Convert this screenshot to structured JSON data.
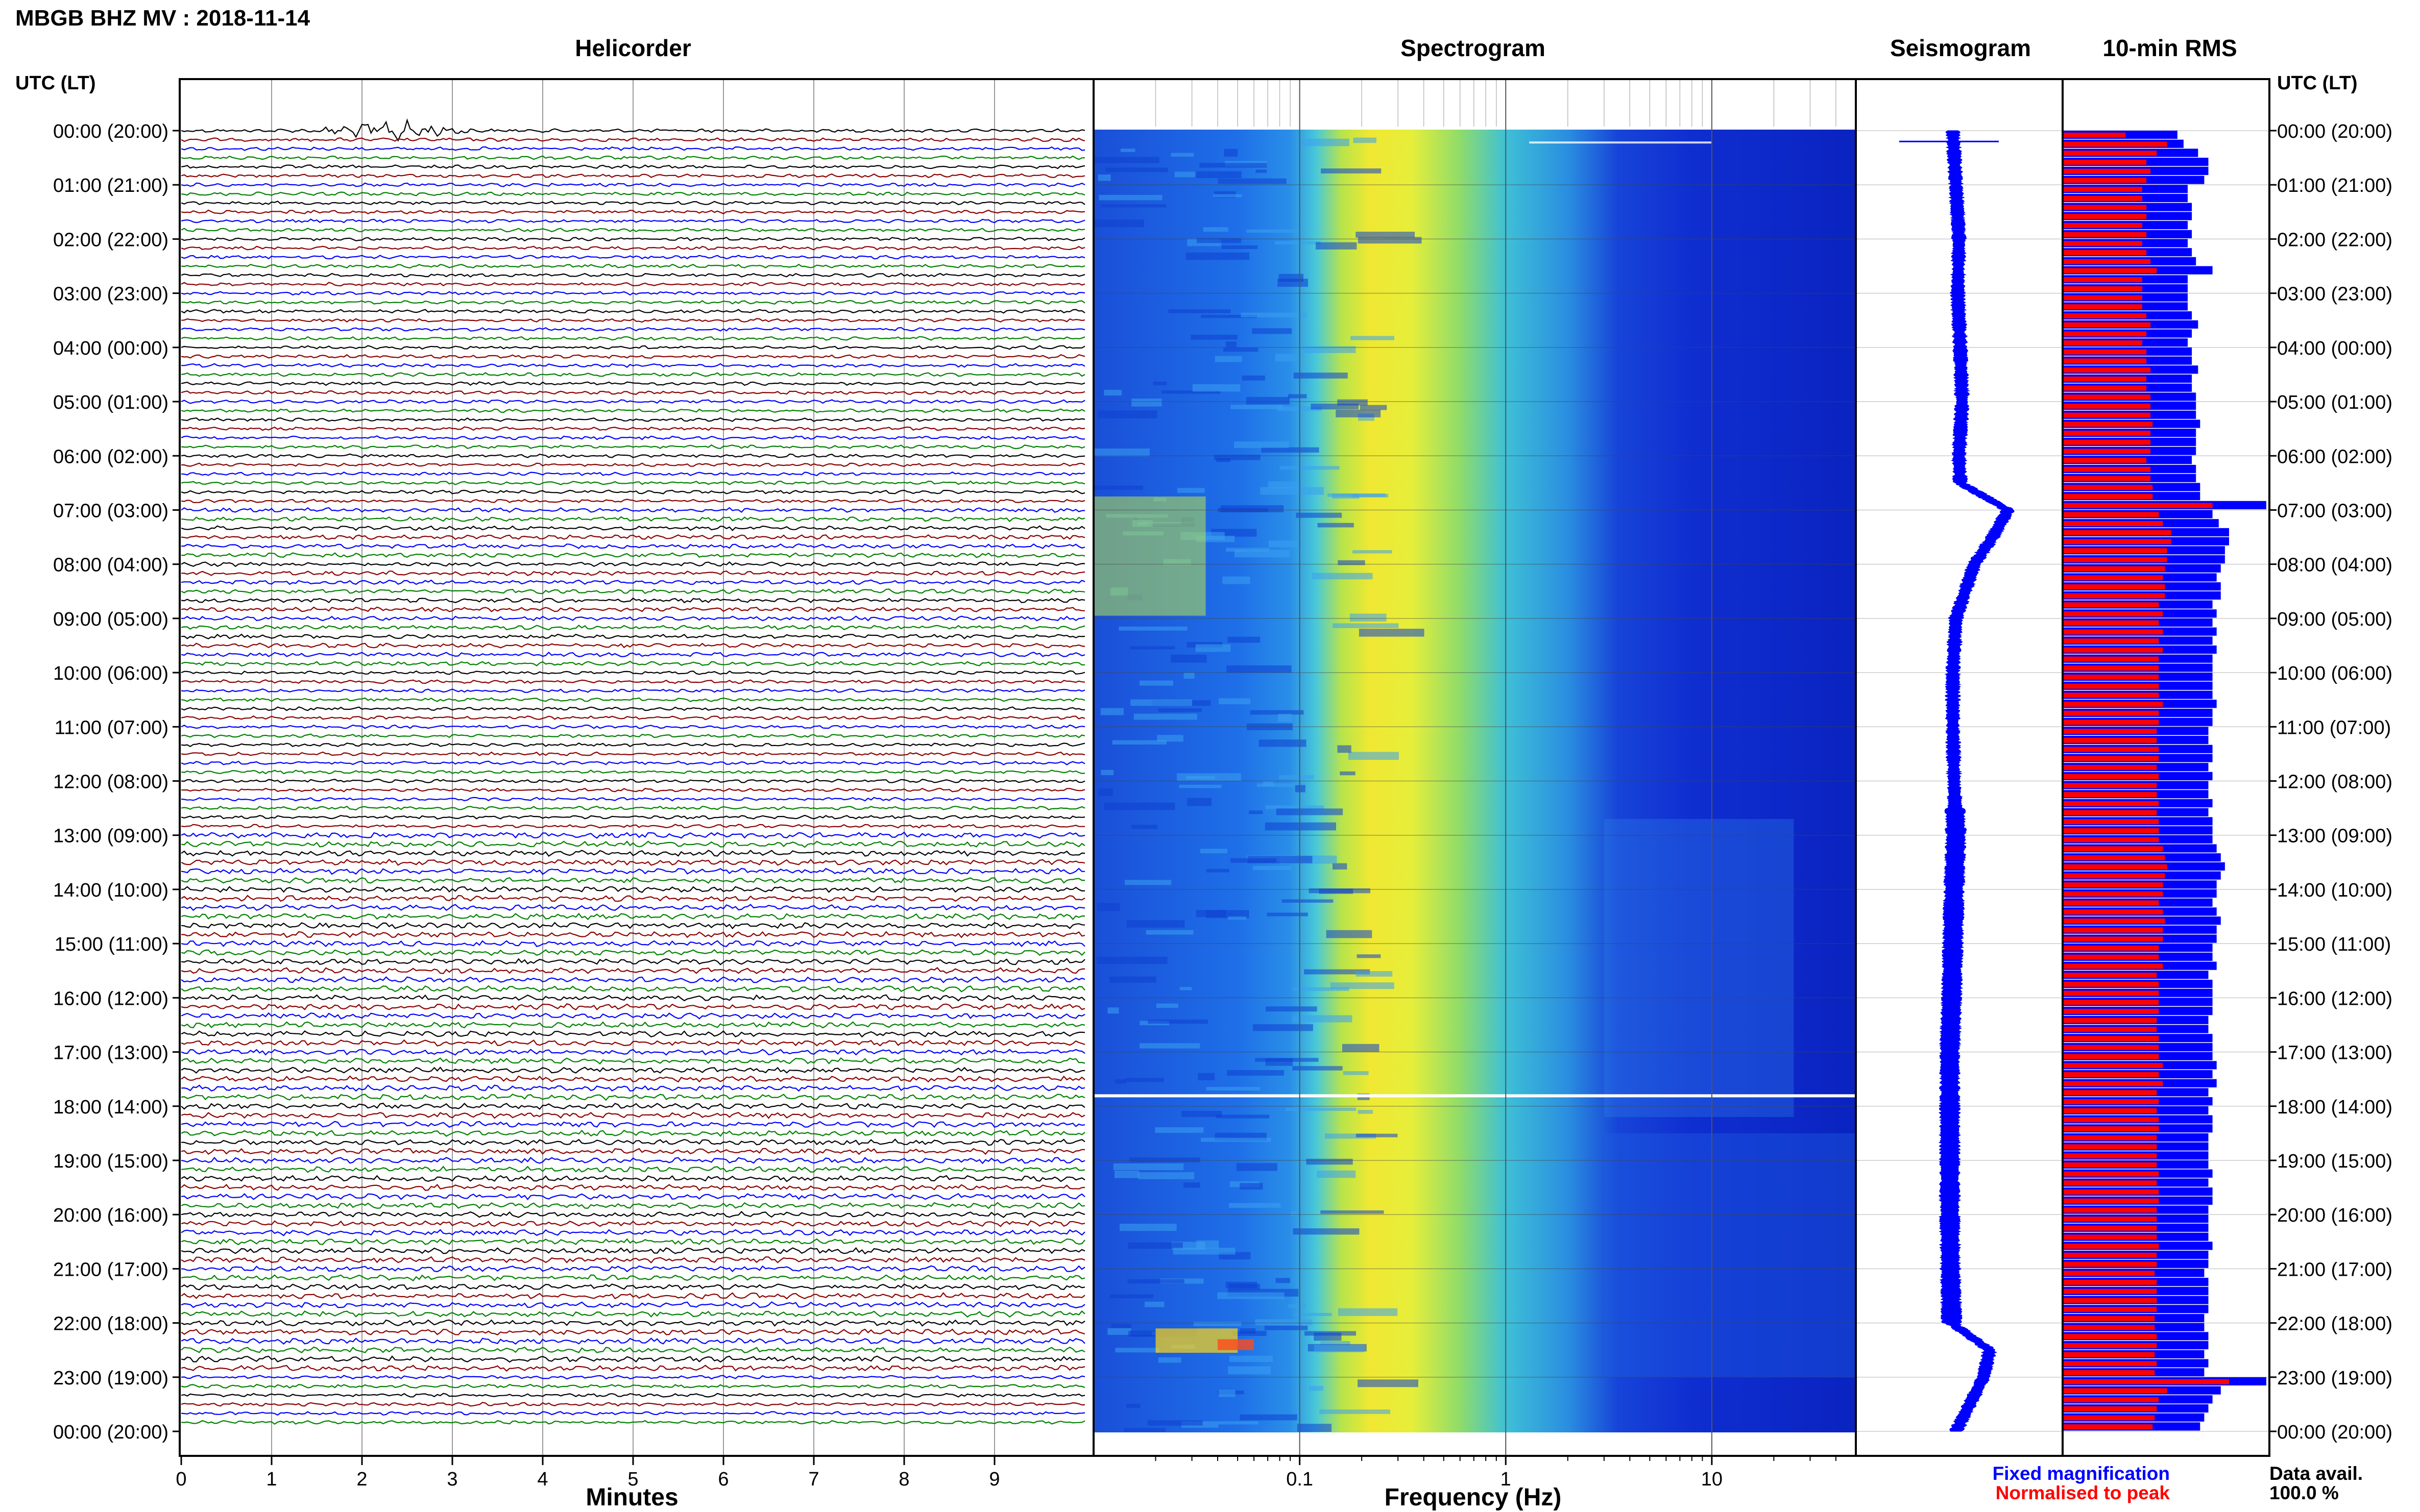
{
  "header": {
    "title": "MBGB BHZ MV : 2018-11-14"
  },
  "axis_labels": {
    "left_corner": "UTC (LT)",
    "right_corner": "UTC (LT)",
    "minutes": "Minutes",
    "frequency": "Frequency (Hz)"
  },
  "panels": {
    "helicorder": "Helicorder",
    "spectrogram": "Spectrogram",
    "seismogram": "Seismogram",
    "rms": "10-min RMS"
  },
  "legend": {
    "fixed": "Fixed magnification",
    "normalised": "Normalised to peak",
    "fixed_color": "#0000ff",
    "normalised_color": "#ff0000"
  },
  "data_availability": {
    "label": "Data avail.",
    "value": "100.0 %"
  },
  "time_labels": [
    "00:00 (20:00)",
    "01:00 (21:00)",
    "02:00 (22:00)",
    "03:00 (23:00)",
    "04:00 (00:00)",
    "05:00 (01:00)",
    "06:00 (02:00)",
    "07:00 (03:00)",
    "08:00 (04:00)",
    "09:00 (05:00)",
    "10:00 (06:00)",
    "11:00 (07:00)",
    "12:00 (08:00)",
    "13:00 (09:00)",
    "14:00 (10:00)",
    "15:00 (11:00)",
    "16:00 (12:00)",
    "17:00 (13:00)",
    "18:00 (14:00)",
    "19:00 (15:00)",
    "20:00 (16:00)",
    "21:00 (17:00)",
    "22:00 (18:00)",
    "23:00 (19:00)",
    "00:00 (20:00)"
  ],
  "chart_data": [
    {
      "type": "line",
      "panel": "Helicorder",
      "xlabel": "Minutes",
      "x_ticks": [
        "0",
        "1",
        "2",
        "3",
        "4",
        "5",
        "6",
        "7",
        "8",
        "9"
      ],
      "xlim": [
        0,
        10
      ],
      "line_colors": [
        "#000000",
        "#8b0000",
        "#0000ff",
        "#008000"
      ],
      "events": [
        {
          "hour": 0,
          "minute_start": 1.5,
          "minute_end": 3.2,
          "peak_minute": 2.35
        }
      ]
    },
    {
      "type": "heatmap",
      "panel": "Spectrogram",
      "xlabel": "Frequency (Hz)",
      "x_scale": "log",
      "x_ticks": [
        "0.1",
        "1",
        "10"
      ],
      "xlim": [
        0.01,
        50
      ],
      "colormap": [
        "#00008b",
        "#0000ff",
        "#00bfff",
        "#7fffd4",
        "#ffff00",
        "#ff0000"
      ],
      "peak_band_hz": [
        0.15,
        0.4
      ]
    },
    {
      "type": "line",
      "panel": "Seismogram",
      "color": "#0000ff",
      "hours": [
        0,
        1,
        2,
        3,
        4,
        5,
        6,
        6.5,
        7,
        7.5,
        8,
        9,
        10,
        11,
        12,
        13,
        14,
        15,
        16,
        17,
        18,
        19,
        20,
        21,
        22,
        22.5,
        23,
        24
      ],
      "offset": [
        0.0,
        0.05,
        0.1,
        0.08,
        0.12,
        0.15,
        0.1,
        0.12,
        0.9,
        0.65,
        0.35,
        0.05,
        0.0,
        0.0,
        0.02,
        0.05,
        0.02,
        0.0,
        -0.02,
        -0.05,
        -0.05,
        -0.05,
        -0.05,
        -0.04,
        -0.02,
        0.6,
        0.5,
        0.05
      ]
    },
    {
      "type": "bar",
      "panel": "10-min RMS",
      "orientation": "horizontal",
      "bins_per_hour": 6,
      "series": [
        {
          "name": "Fixed magnification",
          "color": "#0000ff"
        },
        {
          "name": "Normalised to peak",
          "color": "#ff0000"
        }
      ],
      "fixed": [
        0.55,
        0.58,
        0.65,
        0.7,
        0.7,
        0.68,
        0.6,
        0.6,
        0.62,
        0.62,
        0.6,
        0.62,
        0.6,
        0.62,
        0.64,
        0.72,
        0.6,
        0.6,
        0.6,
        0.6,
        0.62,
        0.65,
        0.62,
        0.6,
        0.62,
        0.62,
        0.65,
        0.62,
        0.62,
        0.64,
        0.64,
        0.64,
        0.66,
        0.64,
        0.64,
        0.64,
        0.62,
        0.64,
        0.64,
        0.66,
        0.66,
        0.98,
        0.72,
        0.75,
        0.8,
        0.8,
        0.78,
        0.78,
        0.76,
        0.74,
        0.76,
        0.76,
        0.72,
        0.74,
        0.72,
        0.74,
        0.72,
        0.74,
        0.72,
        0.72,
        0.72,
        0.72,
        0.72,
        0.74,
        0.72,
        0.72,
        0.7,
        0.7,
        0.72,
        0.72,
        0.7,
        0.72,
        0.7,
        0.7,
        0.72,
        0.7,
        0.72,
        0.72,
        0.72,
        0.74,
        0.76,
        0.78,
        0.76,
        0.74,
        0.74,
        0.72,
        0.74,
        0.76,
        0.74,
        0.74,
        0.72,
        0.72,
        0.74,
        0.7,
        0.72,
        0.72,
        0.72,
        0.72,
        0.7,
        0.7,
        0.72,
        0.72,
        0.72,
        0.74,
        0.72,
        0.74,
        0.7,
        0.72,
        0.7,
        0.72,
        0.72,
        0.7,
        0.7,
        0.7,
        0.7,
        0.72,
        0.7,
        0.72,
        0.72,
        0.7,
        0.7,
        0.7,
        0.7,
        0.72,
        0.7,
        0.7,
        0.68,
        0.7,
        0.7,
        0.7,
        0.7,
        0.68,
        0.68,
        0.7,
        0.7,
        0.68,
        0.7,
        0.68,
        0.98,
        0.76,
        0.72,
        0.7,
        0.68,
        0.66
      ],
      "normalised": [
        0.3,
        0.5,
        0.45,
        0.4,
        0.42,
        0.4,
        0.38,
        0.38,
        0.4,
        0.4,
        0.38,
        0.4,
        0.38,
        0.4,
        0.42,
        0.45,
        0.38,
        0.38,
        0.38,
        0.38,
        0.4,
        0.42,
        0.4,
        0.38,
        0.4,
        0.4,
        0.42,
        0.4,
        0.4,
        0.42,
        0.42,
        0.42,
        0.43,
        0.42,
        0.42,
        0.42,
        0.4,
        0.42,
        0.42,
        0.43,
        0.43,
        0.72,
        0.46,
        0.48,
        0.52,
        0.52,
        0.5,
        0.5,
        0.49,
        0.48,
        0.49,
        0.49,
        0.46,
        0.48,
        0.46,
        0.48,
        0.46,
        0.48,
        0.46,
        0.46,
        0.46,
        0.46,
        0.46,
        0.48,
        0.46,
        0.46,
        0.45,
        0.45,
        0.46,
        0.46,
        0.45,
        0.46,
        0.45,
        0.45,
        0.46,
        0.45,
        0.46,
        0.46,
        0.46,
        0.48,
        0.49,
        0.5,
        0.49,
        0.48,
        0.48,
        0.46,
        0.48,
        0.49,
        0.48,
        0.48,
        0.46,
        0.46,
        0.48,
        0.45,
        0.46,
        0.46,
        0.46,
        0.46,
        0.45,
        0.45,
        0.46,
        0.46,
        0.46,
        0.48,
        0.46,
        0.48,
        0.45,
        0.46,
        0.45,
        0.46,
        0.46,
        0.45,
        0.45,
        0.45,
        0.45,
        0.46,
        0.45,
        0.46,
        0.46,
        0.45,
        0.45,
        0.45,
        0.45,
        0.46,
        0.45,
        0.45,
        0.44,
        0.45,
        0.45,
        0.45,
        0.45,
        0.44,
        0.44,
        0.45,
        0.45,
        0.44,
        0.45,
        0.44,
        0.8,
        0.5,
        0.46,
        0.45,
        0.44,
        0.43
      ]
    }
  ]
}
